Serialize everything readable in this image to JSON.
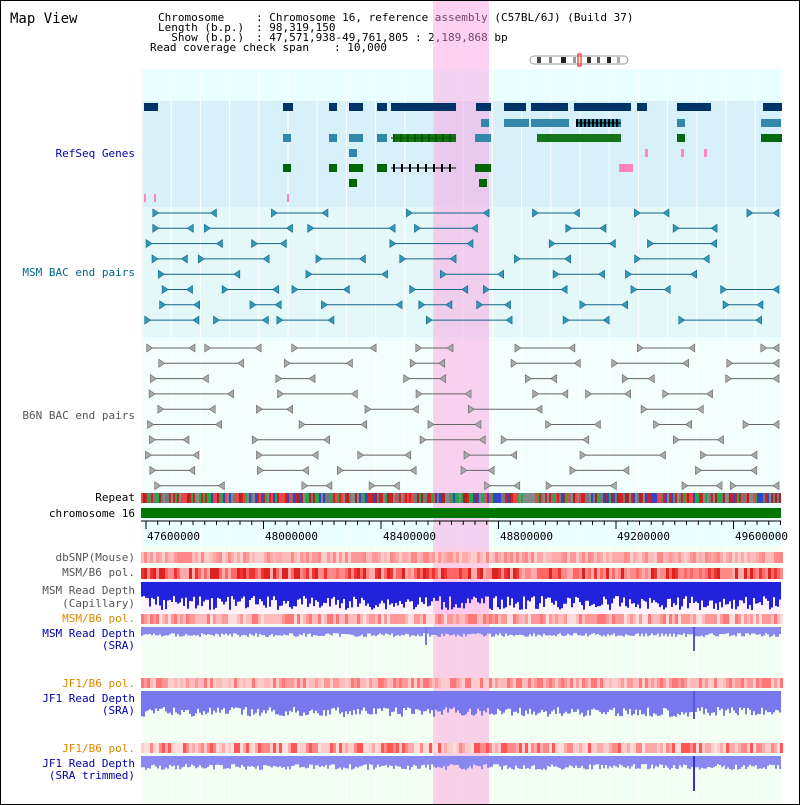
{
  "app": {
    "title": "Map View"
  },
  "info": {
    "chromosome_label": "Chromosome    ",
    "chromosome_value": ": Chromosome 16, reference assembly (C57BL/6J) (Build 37)",
    "length_label": "Length (b.p.)",
    "length_value": ": 98,319,150",
    "show_label": "  Show (b.p.)",
    "show_value": ": 47,571,938-49,761,805 : 2,189,868 bp",
    "coverage_label": "Read coverage check span",
    "coverage_value": ": 10,000"
  },
  "tracks": {
    "refseq": "RefSeq Genes",
    "msm_bac": "MSM BAC end pairs",
    "b6n_bac": "B6N BAC end pairs",
    "repeat": "Repeat",
    "chromosome": "chromosome 16",
    "dbsnp": "dbSNP(Mouse)",
    "msm_b6_pol_1": "MSM/B6 pol.",
    "msm_read_depth_cap": "MSM Read Depth",
    "msm_read_depth_cap_sub": "(Capillary)",
    "msm_b6_pol_2": "MSM/B6 pol.",
    "msm_read_depth_sra": "MSM Read Depth",
    "msm_read_depth_sra_sub": "(SRA)",
    "jf1_b6_pol_1": "JF1/B6 pol.",
    "jf1_read_depth_sra": "JF1 Read Depth",
    "jf1_read_depth_sra_sub": "(SRA)",
    "jf1_b6_pol_2": "JF1/B6 pol.",
    "jf1_read_depth_trim": "JF1 Read Depth",
    "jf1_read_depth_trim_sub": "(SRA trimmed)"
  },
  "axis": {
    "ticks": [
      "47600000",
      "48000000",
      "48400000",
      "48800000",
      "49200000",
      "49600000"
    ]
  },
  "colors": {
    "refseq_label": "#0000aa",
    "msm_label": "#006688",
    "b6n_label": "#555555",
    "pol_label": "#dd8800",
    "depth_label": "#0000aa",
    "highlight": "#ff99dd",
    "chromosome_bar": "#007700"
  }
}
